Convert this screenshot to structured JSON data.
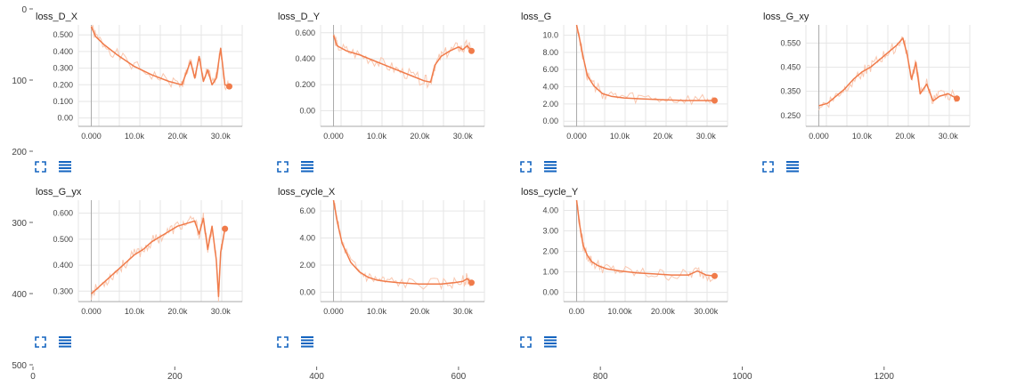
{
  "colors": {
    "line": "#f07b4a",
    "raw": "#f9c8b1",
    "icons": "#1565c0"
  },
  "outer_axes": {
    "y_ticks": [
      "0",
      "100",
      "200",
      "300",
      "400",
      "500"
    ],
    "x_ticks": [
      "0",
      "200",
      "400",
      "600",
      "800",
      "1000",
      "1200"
    ]
  },
  "panel_icons": [
    "expand-icon",
    "data-list-icon"
  ],
  "chart_data": [
    {
      "type": "line",
      "title": "loss_D_X",
      "x_ticks": [
        "0.000",
        "10.0k",
        "20.0k",
        "30.0k"
      ],
      "y_ticks": [
        "0.00",
        "0.100",
        "0.200",
        "0.300",
        "0.400",
        "0.500"
      ],
      "xlim": [
        -3000,
        35000
      ],
      "ylim": [
        -0.05,
        0.56
      ],
      "series": [
        {
          "x": [
            0,
            1000,
            3000,
            6000,
            10000,
            14000,
            18000,
            21000,
            22000,
            23000,
            24000,
            25000,
            26000,
            27000,
            28000,
            29000,
            30000,
            31000,
            32000
          ],
          "values": [
            0.55,
            0.49,
            0.44,
            0.38,
            0.31,
            0.26,
            0.22,
            0.2,
            0.27,
            0.34,
            0.24,
            0.37,
            0.22,
            0.29,
            0.2,
            0.24,
            0.42,
            0.2,
            0.19
          ]
        }
      ]
    },
    {
      "type": "line",
      "title": "loss_D_Y",
      "x_ticks": [
        "0.000",
        "10.0k",
        "20.0k",
        "30.0k"
      ],
      "y_ticks": [
        "0.00",
        "0.200",
        "0.400",
        "0.600"
      ],
      "xlim": [
        -3000,
        35000
      ],
      "ylim": [
        -0.12,
        0.66
      ],
      "series": [
        {
          "x": [
            0,
            800,
            3000,
            6000,
            9000,
            12000,
            15000,
            18000,
            21000,
            22500,
            23500,
            25000,
            27000,
            29000,
            30000,
            31000,
            32000
          ],
          "values": [
            0.58,
            0.5,
            0.46,
            0.43,
            0.39,
            0.35,
            0.31,
            0.27,
            0.23,
            0.22,
            0.35,
            0.42,
            0.46,
            0.49,
            0.47,
            0.5,
            0.46
          ]
        }
      ]
    },
    {
      "type": "line",
      "title": "loss_G",
      "x_ticks": [
        "0.000",
        "10.0k",
        "20.0k",
        "30.0k"
      ],
      "y_ticks": [
        "0.00",
        "2.00",
        "4.00",
        "6.00",
        "8.00",
        "10.0"
      ],
      "xlim": [
        -3000,
        35000
      ],
      "ylim": [
        -0.6,
        11.2
      ],
      "series": [
        {
          "x": [
            0,
            800,
            1500,
            2500,
            4000,
            6000,
            8000,
            11000,
            15000,
            20000,
            25000,
            30000,
            32000
          ],
          "values": [
            11.2,
            9.3,
            7.5,
            5.3,
            4.1,
            3.2,
            2.9,
            2.7,
            2.6,
            2.5,
            2.4,
            2.4,
            2.4
          ]
        }
      ]
    },
    {
      "type": "line",
      "title": "loss_G_xy",
      "x_ticks": [
        "0.000",
        "10.0k",
        "20.0k",
        "30.0k"
      ],
      "y_ticks": [
        "0.250",
        "0.350",
        "0.450",
        "0.550"
      ],
      "xlim": [
        -3000,
        35000
      ],
      "ylim": [
        0.205,
        0.625
      ],
      "series": [
        {
          "x": [
            0,
            2000,
            4000,
            6000,
            8000,
            10000,
            12000,
            14000,
            16000,
            18000,
            19500,
            20500,
            21500,
            22500,
            23500,
            25000,
            26500,
            28000,
            30000,
            32000
          ],
          "values": [
            0.29,
            0.3,
            0.33,
            0.36,
            0.4,
            0.43,
            0.45,
            0.48,
            0.51,
            0.54,
            0.57,
            0.5,
            0.4,
            0.47,
            0.34,
            0.38,
            0.31,
            0.33,
            0.34,
            0.32
          ]
        }
      ]
    },
    {
      "type": "line",
      "title": "loss_G_yx",
      "x_ticks": [
        "0.000",
        "10.0k",
        "20.0k",
        "30.0k"
      ],
      "y_ticks": [
        "0.300",
        "0.400",
        "0.500",
        "0.600"
      ],
      "xlim": [
        -3000,
        35000
      ],
      "ylim": [
        0.26,
        0.65
      ],
      "series": [
        {
          "x": [
            0,
            2000,
            4000,
            6000,
            8000,
            10000,
            12000,
            14000,
            16000,
            18000,
            20000,
            22000,
            24000,
            25000,
            26000,
            27000,
            28000,
            29000,
            29500,
            30000,
            31000
          ],
          "values": [
            0.29,
            0.32,
            0.35,
            0.38,
            0.41,
            0.44,
            0.46,
            0.49,
            0.51,
            0.53,
            0.55,
            0.56,
            0.57,
            0.52,
            0.58,
            0.46,
            0.55,
            0.42,
            0.28,
            0.45,
            0.54
          ]
        }
      ]
    },
    {
      "type": "line",
      "title": "loss_cycle_X",
      "x_ticks": [
        "0.000",
        "10.0k",
        "20.0k",
        "30.0k"
      ],
      "y_ticks": [
        "0.00",
        "2.00",
        "4.00",
        "6.00"
      ],
      "xlim": [
        -3000,
        35000
      ],
      "ylim": [
        -0.7,
        6.8
      ],
      "series": [
        {
          "x": [
            0,
            1000,
            2000,
            4000,
            6000,
            8000,
            10000,
            12000,
            15000,
            20000,
            25000,
            28000,
            30000,
            31000,
            32000
          ],
          "values": [
            6.8,
            5.0,
            3.6,
            2.2,
            1.5,
            1.1,
            0.9,
            0.8,
            0.7,
            0.6,
            0.6,
            0.7,
            0.8,
            1.0,
            0.7
          ]
        }
      ]
    },
    {
      "type": "line",
      "title": "loss_cycle_Y",
      "x_ticks": [
        "0.00",
        "10.00k",
        "20.00k",
        "30.00k"
      ],
      "y_ticks": [
        "0.00",
        "1.00",
        "2.00",
        "3.00",
        "4.00"
      ],
      "xlim": [
        -3000,
        35000
      ],
      "ylim": [
        -0.45,
        4.5
      ],
      "series": [
        {
          "x": [
            0,
            700,
            1500,
            2500,
            3500,
            5000,
            7000,
            10000,
            14000,
            18000,
            22000,
            26000,
            28000,
            30000,
            32000
          ],
          "values": [
            4.5,
            3.3,
            2.3,
            1.8,
            1.5,
            1.3,
            1.15,
            1.05,
            0.95,
            0.9,
            0.85,
            0.85,
            1.05,
            0.85,
            0.8
          ]
        }
      ]
    }
  ]
}
